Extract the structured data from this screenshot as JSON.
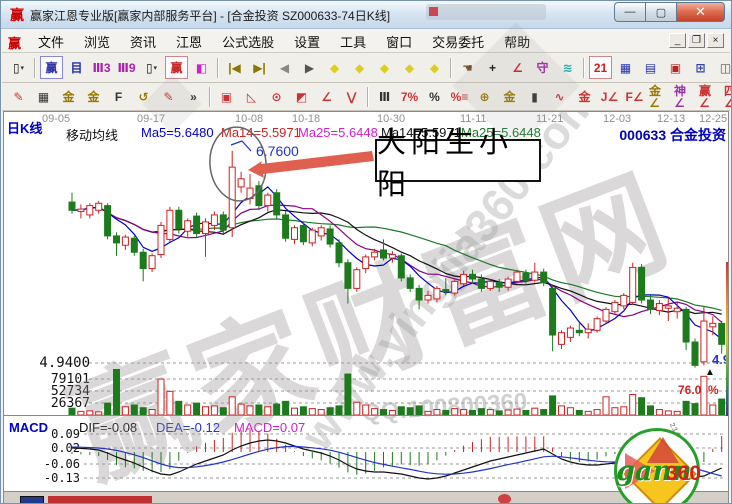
{
  "window": {
    "title": "赢家江恩专业版[赢家内部服务平台] - [合金投资 SZ000633-74日K线]",
    "icon_char": "赢",
    "caption_buttons": {
      "minimize": "—",
      "maximize": "▢",
      "close": "✕"
    }
  },
  "menu": {
    "logo_char": "赢",
    "items": [
      "文件",
      "浏览",
      "资讯",
      "江恩",
      "公式选股",
      "设置",
      "工具",
      "窗口",
      "交易委托",
      "帮助"
    ],
    "mdi_buttons": {
      "minimize": "_",
      "restore": "❐",
      "close": "×"
    }
  },
  "toolbar1": {
    "icons": [
      {
        "n": "candle-period-icon",
        "g": "▯",
        "c": "#111",
        "d": true
      },
      {
        "sep": true
      },
      {
        "n": "winner-home-icon",
        "g": "赢",
        "c": "#3333aa",
        "box": "#8888cc"
      },
      {
        "n": "info-panel-icon",
        "g": "目",
        "c": "#2233aa"
      },
      {
        "n": "chart-3min-icon",
        "g": "Ⅲ3",
        "c": "#aa22aa"
      },
      {
        "n": "chart-9min-icon",
        "g": "Ⅲ9",
        "c": "#aa22aa"
      },
      {
        "n": "candle-style-icon",
        "g": "▯",
        "c": "#111",
        "d": true
      },
      {
        "n": "winner-red-icon",
        "g": "赢",
        "c": "#cc2222",
        "box": "#cc8888"
      },
      {
        "n": "color-bars-icon",
        "g": "◧",
        "c": "#cc22cc"
      },
      {
        "sep": true
      },
      {
        "n": "jump-first-icon",
        "g": "|◀",
        "c": "#887700"
      },
      {
        "n": "jump-last-icon",
        "g": "▶|",
        "c": "#887700"
      },
      {
        "n": "prev-bar-icon",
        "g": "◀",
        "c": "#888888"
      },
      {
        "n": "next-bar-icon",
        "g": "▶",
        "c": "#555555"
      },
      {
        "n": "diamond-left-icon",
        "g": "◆",
        "c": "#ddcc22"
      },
      {
        "n": "diamond-right-icon",
        "g": "◆",
        "c": "#ddcc22"
      },
      {
        "n": "diamond-expand-icon",
        "g": "◆",
        "c": "#ddcc22"
      },
      {
        "n": "diamond-all-icon",
        "g": "◆",
        "c": "#ddcc22"
      },
      {
        "n": "diamond-vertical-icon",
        "g": "◆",
        "c": "#ddcc22"
      },
      {
        "sep": true
      },
      {
        "n": "hand-tool-icon",
        "g": "☚",
        "c": "#775533"
      },
      {
        "n": "crosshair-icon",
        "g": "+",
        "c": "#111"
      },
      {
        "n": "angle-measure-icon",
        "g": "∠",
        "c": "#cc2222"
      },
      {
        "n": "purple-gann-tool-icon",
        "g": "守",
        "c": "#aa22aa"
      },
      {
        "n": "brain-tool-icon",
        "g": "≋",
        "c": "#22aaaa"
      },
      {
        "sep": true
      },
      {
        "n": "calendar-icon",
        "g": "21",
        "c": "#cc2222",
        "box": "#cc8888"
      },
      {
        "n": "calculator-icon",
        "g": "▦",
        "c": "#2233aa"
      },
      {
        "n": "notes-icon",
        "g": "▤",
        "c": "#2233aa"
      },
      {
        "n": "save-icon",
        "g": "▣",
        "c": "#bb2222"
      },
      {
        "n": "export-icon",
        "g": "⊞",
        "c": "#3344aa"
      },
      {
        "n": "print-icon",
        "g": "◫",
        "c": "#555555"
      }
    ]
  },
  "toolbar2": {
    "icons": [
      {
        "n": "draw-pen-icon",
        "g": "✎",
        "c": "#cc3333"
      },
      {
        "n": "grid-tool-icon",
        "g": "▦",
        "c": "#333333"
      },
      {
        "n": "gann-grid-gold-icon",
        "g": "金",
        "c": "#997700"
      },
      {
        "n": "gann-grid-gold2-icon",
        "g": "金",
        "c": "#997700"
      },
      {
        "n": "f-grid-icon",
        "g": "F",
        "c": "#333333"
      },
      {
        "n": "spiral-icon",
        "g": "↺",
        "c": "#997700"
      },
      {
        "n": "pen-grid-icon",
        "g": "✎",
        "c": "#cc3333"
      },
      {
        "n": "more-tools-icon",
        "g": "»",
        "c": "#333333"
      },
      {
        "sep": true
      },
      {
        "n": "box-tool-icon",
        "g": "▣",
        "c": "#cc3333"
      },
      {
        "n": "fan-lines-icon",
        "g": "◺",
        "c": "#cc3333"
      },
      {
        "n": "circle-fan-icon",
        "g": "⊙",
        "c": "#cc3333"
      },
      {
        "n": "square-fan-icon",
        "g": "◩",
        "c": "#cc3333"
      },
      {
        "n": "angle-lines-icon",
        "g": "∠",
        "c": "#cc3333"
      },
      {
        "n": "v-lines-icon",
        "g": "⋁",
        "c": "#cc3333"
      },
      {
        "sep": true
      },
      {
        "n": "percent-bars-icon",
        "g": "Ⅲ",
        "c": "#333333"
      },
      {
        "n": "seven-percent-icon",
        "g": "7%",
        "c": "#cc3333"
      },
      {
        "n": "percent-icon",
        "g": "%",
        "c": "#333333"
      },
      {
        "n": "percent-lines-icon",
        "g": "%≡",
        "c": "#cc3333"
      },
      {
        "n": "gann-circle-icon",
        "g": "⊕",
        "c": "#997700"
      },
      {
        "n": "gann-lines-icon",
        "g": "金",
        "c": "#997700"
      },
      {
        "n": "candle-pen-icon",
        "g": "▮",
        "c": "#333333"
      },
      {
        "n": "wave-tool-icon",
        "g": "∿",
        "c": "#cc3333"
      },
      {
        "n": "gann-red-icon",
        "g": "金",
        "c": "#cc3333"
      },
      {
        "n": "j-angle-icon",
        "g": "J∠",
        "c": "#cc3333"
      },
      {
        "n": "f-angle-icon",
        "g": "F∠",
        "c": "#cc3333"
      },
      {
        "n": "gann-angle-icon",
        "g": "金∠",
        "c": "#997700"
      },
      {
        "n": "shen-angle-icon",
        "g": "神∠",
        "c": "#9933aa"
      },
      {
        "n": "ying-angle-icon",
        "g": "赢∠",
        "c": "#cc3333"
      },
      {
        "n": "si-angle-icon",
        "g": "四∠",
        "c": "#cc3333"
      }
    ]
  },
  "chart": {
    "panel_label": "日K线",
    "code_label": "000633 合金投资",
    "date_axis": [
      "09-05",
      "09-17",
      "10-08",
      "10-18",
      "10-30",
      "11-11",
      "11-21",
      "12-03",
      "12-13",
      "12-25"
    ],
    "ma_header": {
      "label": "移动均线",
      "items": [
        {
          "text": "Ma5=5.6480",
          "color": "#0000cc"
        },
        {
          "text": "Ma14=5.5971",
          "color": "#cc2222"
        },
        {
          "text": "Ma25=5.6448",
          "color": "#cc22cc"
        },
        {
          "text": "Ma14=5.5971",
          "color": "#111111"
        },
        {
          "text": "Ma25=5.6448",
          "color": "#1a7a2a"
        }
      ]
    },
    "annotation": {
      "price_label": "6.7600",
      "box_text": "大阳生小阳"
    },
    "price_axis_label": "4.9400",
    "volume_axis_labels": [
      "79101",
      "52734",
      "26367"
    ],
    "percent_label": "76.03%",
    "right_price_label": "4.9",
    "triangle_marker": "▲",
    "macd": {
      "label": "MACD",
      "dif_label": "DIF=-0.08",
      "dea_label": "DEA=-0.12",
      "macd_label": "MACD=0.07",
      "axis_labels": [
        "0.09",
        "0.02",
        "-0.06",
        "-0.13"
      ]
    },
    "watermarks": {
      "big": "赢家财富网",
      "url": "www.yingjia360.com",
      "qq": "QQ:100800360"
    },
    "logo": {
      "gann": "gann",
      "n360": "360",
      "digits_a": "2345678901",
      "digits_b": "4567890123"
    }
  },
  "chart_data": {
    "type": "candlestick+volume+macd",
    "title": "合金投资 SZ000633 74日K线",
    "annotated_high": 6.76,
    "price_gridlines": [
      4.94
    ],
    "volume_gridlines": [
      26367,
      52734,
      79101
    ],
    "macd_gridlines": [
      0.09,
      0.02,
      -0.06,
      -0.13
    ],
    "ma_values": {
      "Ma5": 5.648,
      "Ma14": 5.5971,
      "Ma25": 5.6448
    },
    "macd_last": {
      "DIF": -0.08,
      "DEA": -0.12,
      "MACD": 0.07
    },
    "candles": [
      [
        6.32,
        6.4,
        6.22,
        6.25
      ],
      [
        6.24,
        6.3,
        6.18,
        6.26
      ],
      [
        6.21,
        6.31,
        6.18,
        6.29
      ],
      [
        6.25,
        6.33,
        6.22,
        6.31
      ],
      [
        6.29,
        6.31,
        6.0,
        6.03
      ],
      [
        6.03,
        6.06,
        5.86,
        5.97
      ],
      [
        5.95,
        6.04,
        5.91,
        6.02
      ],
      [
        6.01,
        6.03,
        5.86,
        5.89
      ],
      [
        5.89,
        5.92,
        5.64,
        5.75
      ],
      [
        5.75,
        5.88,
        5.72,
        5.86
      ],
      [
        5.87,
        6.15,
        5.84,
        6.12
      ],
      [
        6.0,
        6.28,
        5.98,
        6.25
      ],
      [
        6.25,
        6.28,
        6.05,
        6.09
      ],
      [
        6.07,
        6.18,
        6.02,
        6.16
      ],
      [
        6.2,
        6.23,
        6.02,
        6.05
      ],
      [
        6.05,
        6.18,
        5.85,
        6.15
      ],
      [
        6.12,
        6.24,
        6.08,
        6.21
      ],
      [
        6.21,
        6.24,
        6.05,
        6.08
      ],
      [
        6.1,
        6.76,
        6.02,
        6.62
      ],
      [
        6.45,
        6.58,
        6.4,
        6.52
      ],
      [
        6.35,
        6.56,
        6.3,
        6.44
      ],
      [
        6.46,
        6.5,
        6.25,
        6.29
      ],
      [
        6.29,
        6.4,
        6.24,
        6.38
      ],
      [
        6.4,
        6.43,
        6.18,
        6.21
      ],
      [
        6.21,
        6.24,
        5.98,
        6.01
      ],
      [
        6.0,
        6.12,
        5.96,
        6.1
      ],
      [
        6.12,
        6.15,
        5.95,
        5.98
      ],
      [
        5.97,
        6.1,
        5.94,
        6.08
      ],
      [
        6.03,
        6.12,
        5.99,
        6.1
      ],
      [
        6.09,
        6.12,
        5.93,
        5.96
      ],
      [
        5.97,
        6.0,
        5.76,
        5.8
      ],
      [
        5.8,
        5.83,
        5.45,
        5.58
      ],
      [
        5.58,
        5.76,
        5.55,
        5.74
      ],
      [
        5.75,
        5.87,
        5.71,
        5.85
      ],
      [
        5.85,
        5.92,
        5.82,
        5.89
      ],
      [
        5.91,
        6.0,
        5.82,
        5.84
      ],
      [
        5.84,
        5.9,
        5.8,
        5.87
      ],
      [
        5.86,
        5.88,
        5.64,
        5.67
      ],
      [
        5.67,
        5.7,
        5.55,
        5.58
      ],
      [
        5.58,
        5.61,
        5.4,
        5.48
      ],
      [
        5.48,
        5.56,
        5.45,
        5.52
      ],
      [
        5.49,
        5.6,
        5.46,
        5.58
      ],
      [
        5.57,
        5.67,
        5.52,
        5.55
      ],
      [
        5.54,
        5.66,
        5.52,
        5.64
      ],
      [
        5.62,
        5.73,
        5.6,
        5.7
      ],
      [
        5.7,
        5.74,
        5.62,
        5.66
      ],
      [
        5.66,
        5.7,
        5.55,
        5.58
      ],
      [
        5.58,
        5.66,
        5.56,
        5.64
      ],
      [
        5.63,
        5.66,
        5.55,
        5.59
      ],
      [
        5.59,
        5.68,
        5.56,
        5.66
      ],
      [
        5.64,
        5.74,
        5.62,
        5.72
      ],
      [
        5.71,
        5.74,
        5.62,
        5.65
      ],
      [
        5.65,
        5.8,
        5.63,
        5.72
      ],
      [
        5.72,
        5.75,
        5.6,
        5.63
      ],
      [
        5.58,
        5.6,
        5.04,
        5.18
      ],
      [
        5.1,
        5.22,
        5.06,
        5.2
      ],
      [
        5.16,
        5.26,
        5.12,
        5.24
      ],
      [
        5.22,
        5.28,
        5.17,
        5.2
      ],
      [
        5.2,
        5.28,
        5.15,
        5.23
      ],
      [
        5.22,
        5.34,
        5.2,
        5.32
      ],
      [
        5.3,
        5.42,
        5.28,
        5.4
      ],
      [
        5.38,
        5.48,
        5.35,
        5.46
      ],
      [
        5.43,
        5.54,
        5.4,
        5.52
      ],
      [
        5.46,
        5.8,
        5.44,
        5.76
      ],
      [
        5.76,
        5.79,
        5.45,
        5.48
      ],
      [
        5.48,
        5.52,
        5.36,
        5.4
      ],
      [
        5.39,
        5.48,
        5.35,
        5.45
      ],
      [
        5.41,
        5.5,
        5.3,
        5.43
      ],
      [
        5.38,
        5.46,
        5.32,
        5.41
      ],
      [
        5.4,
        5.42,
        5.05,
        5.12
      ],
      [
        5.12,
        5.15,
        4.9,
        4.92
      ],
      [
        4.95,
        5.42,
        4.92,
        5.3
      ],
      [
        5.25,
        5.34,
        5.18,
        5.28
      ],
      [
        5.28,
        5.3,
        5.02,
        5.1
      ]
    ],
    "volumes": [
      15000,
      8000,
      9000,
      7000,
      26000,
      100000,
      18000,
      22000,
      16000,
      12000,
      79000,
      52000,
      30000,
      22000,
      26000,
      18000,
      20000,
      16000,
      40000,
      24000,
      20000,
      22000,
      18000,
      24000,
      30000,
      15000,
      18000,
      14000,
      12000,
      16000,
      20000,
      90000,
      28000,
      22000,
      14000,
      12000,
      10000,
      18000,
      16000,
      20000,
      8000,
      12000,
      10000,
      14000,
      12000,
      10000,
      14000,
      12000,
      9000,
      11000,
      13000,
      10000,
      15000,
      12000,
      42000,
      20000,
      16000,
      10000,
      8000,
      12000,
      40000,
      16000,
      18000,
      45000,
      38000,
      20000,
      12000,
      9000,
      8000,
      30000,
      25000,
      85000,
      22000,
      35000
    ],
    "dif": [
      0.02,
      0.018,
      0.015,
      0.01,
      -0.005,
      -0.025,
      -0.04,
      -0.055,
      -0.075,
      -0.095,
      -0.11,
      -0.115,
      -0.1,
      -0.08,
      -0.06,
      -0.045,
      -0.03,
      -0.015,
      0.01,
      0.03,
      0.045,
      0.055,
      0.06,
      0.055,
      0.045,
      0.03,
      0.015,
      0.005,
      -0.005,
      -0.02,
      -0.04,
      -0.065,
      -0.085,
      -0.095,
      -0.1,
      -0.1,
      -0.105,
      -0.11,
      -0.12,
      -0.13,
      -0.135,
      -0.13,
      -0.12,
      -0.105,
      -0.09,
      -0.075,
      -0.06,
      -0.045,
      -0.035,
      -0.025,
      -0.015,
      -0.005,
      0.005,
      0.015,
      -0.01,
      -0.035,
      -0.05,
      -0.06,
      -0.065,
      -0.065,
      -0.06,
      -0.055,
      -0.05,
      -0.04,
      -0.045,
      -0.055,
      -0.065,
      -0.075,
      -0.085,
      -0.105,
      -0.125,
      -0.12,
      -0.1,
      -0.08
    ],
    "dea": [
      0.025,
      0.024,
      0.022,
      0.02,
      0.015,
      0.008,
      -0.002,
      -0.014,
      -0.028,
      -0.044,
      -0.06,
      -0.072,
      -0.078,
      -0.078,
      -0.074,
      -0.068,
      -0.06,
      -0.05,
      -0.038,
      -0.024,
      -0.01,
      0.003,
      0.014,
      0.022,
      0.027,
      0.028,
      0.025,
      0.021,
      0.016,
      0.009,
      -0.001,
      -0.014,
      -0.028,
      -0.041,
      -0.053,
      -0.062,
      -0.071,
      -0.079,
      -0.087,
      -0.096,
      -0.104,
      -0.109,
      -0.111,
      -0.11,
      -0.106,
      -0.1,
      -0.092,
      -0.083,
      -0.073,
      -0.063,
      -0.054,
      -0.044,
      -0.034,
      -0.024,
      -0.021,
      -0.024,
      -0.029,
      -0.035,
      -0.041,
      -0.046,
      -0.049,
      -0.05,
      -0.05,
      -0.048,
      -0.047,
      -0.049,
      -0.052,
      -0.057,
      -0.063,
      -0.071,
      -0.082,
      -0.095,
      -0.108,
      -0.12
    ],
    "colors": {
      "up": "#cc2222",
      "down": "#1d7a1d",
      "ma5": "#0000cc",
      "ma10": "#880088",
      "ma14": "#111111",
      "ma25": "#1a7a2a",
      "dif": "#111111",
      "dea": "#2233cc",
      "grid": "#999999",
      "hist_up": "#cc2222",
      "hist_down": "#1d7a1d"
    }
  },
  "status_bar": {
    "items": [
      "blue-chip",
      "red-badge",
      "red-dot"
    ]
  }
}
